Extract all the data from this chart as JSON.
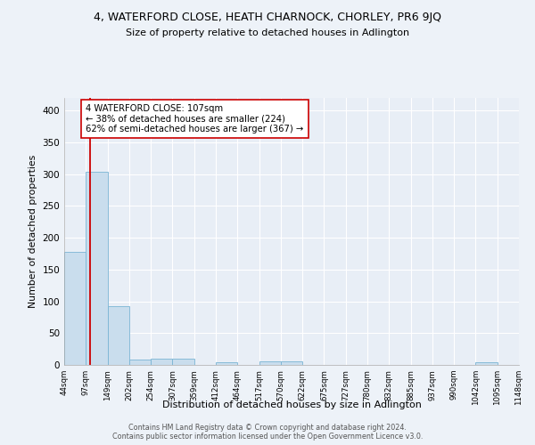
{
  "title": "4, WATERFORD CLOSE, HEATH CHARNOCK, CHORLEY, PR6 9JQ",
  "subtitle": "Size of property relative to detached houses in Adlington",
  "xlabel": "Distribution of detached houses by size in Adlington",
  "ylabel": "Number of detached properties",
  "bar_edges": [
    44,
    97,
    149,
    202,
    254,
    307,
    359,
    412,
    464,
    517,
    570,
    622,
    675,
    727,
    780,
    832,
    885,
    937,
    990,
    1042,
    1095
  ],
  "bar_heights": [
    178,
    304,
    93,
    8,
    10,
    10,
    0,
    4,
    0,
    5,
    5,
    0,
    0,
    0,
    0,
    0,
    0,
    0,
    0,
    4,
    0
  ],
  "bar_color": "#c9dded",
  "bar_edge_color": "#7ab4d4",
  "property_line_x": 107,
  "property_line_color": "#cc0000",
  "annotation_text": "4 WATERFORD CLOSE: 107sqm\n← 38% of detached houses are smaller (224)\n62% of semi-detached houses are larger (367) →",
  "annotation_box_color": "#ffffff",
  "annotation_box_edge": "#cc0000",
  "ylim": [
    0,
    420
  ],
  "yticks": [
    0,
    50,
    100,
    150,
    200,
    250,
    300,
    350,
    400
  ],
  "background_color": "#e8eef6",
  "fig_background_color": "#edf2f8",
  "grid_color": "#ffffff",
  "footer_line1": "Contains HM Land Registry data © Crown copyright and database right 2024.",
  "footer_line2": "Contains public sector information licensed under the Open Government Licence v3.0."
}
